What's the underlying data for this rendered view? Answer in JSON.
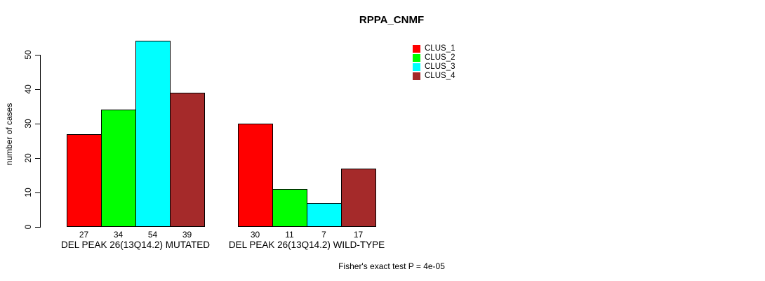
{
  "chart_data": {
    "type": "bar",
    "title": "RPPA_CNMF",
    "ylabel": "number of cases",
    "xlabel": "",
    "yticks": [
      0,
      10,
      20,
      30,
      40,
      50
    ],
    "ylim": [
      0,
      54
    ],
    "grid": false,
    "legend_position": "top-right",
    "categories": [
      "DEL PEAK 26(13Q14.2) MUTATED",
      "DEL PEAK 26(13Q14.2) WILD-TYPE"
    ],
    "series": [
      {
        "name": "CLUS_1",
        "color": "#FF0000",
        "values": [
          27,
          30
        ]
      },
      {
        "name": "CLUS_2",
        "color": "#00FF00",
        "values": [
          34,
          11
        ]
      },
      {
        "name": "CLUS_3",
        "color": "#00FFFF",
        "values": [
          54,
          7
        ]
      },
      {
        "name": "CLUS_4",
        "color": "#A52A2A",
        "values": [
          39,
          17
        ]
      }
    ],
    "bar_value_labels": [
      [
        27,
        34,
        54,
        39
      ],
      [
        30,
        11,
        7,
        17
      ]
    ],
    "annotation": "Fisher's exact test P = 4e-05"
  },
  "colors": {
    "background": "#FFFFFF",
    "axis": "#000000",
    "bar_border": "#000000"
  }
}
